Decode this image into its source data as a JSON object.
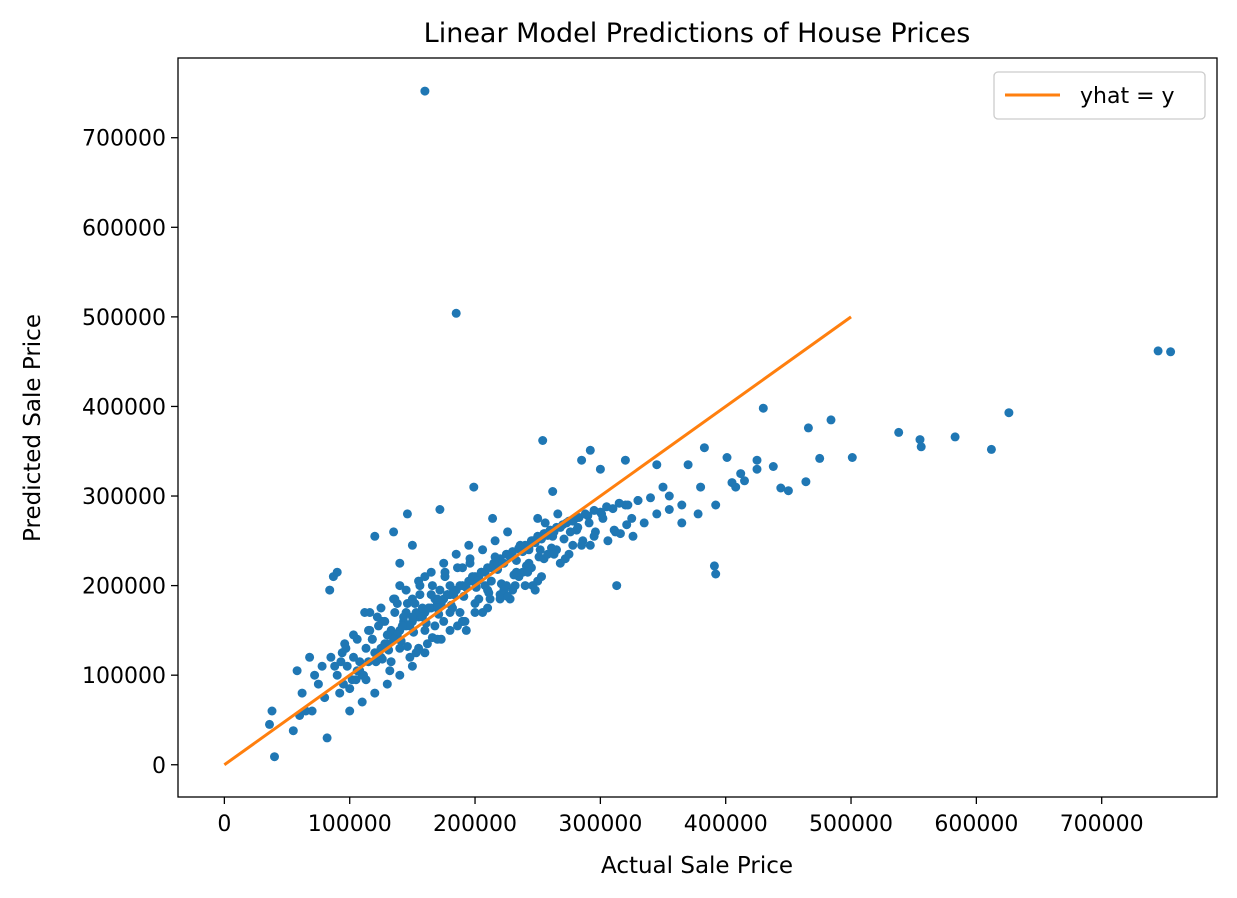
{
  "chart_data": {
    "type": "scatter",
    "title": "Linear Model Predictions of House Prices",
    "xlabel": "Actual Sale Price",
    "ylabel": "Predicted Sale Price",
    "xlim": [
      -37000,
      792000
    ],
    "ylim": [
      -36000,
      789000
    ],
    "xticks": [
      0,
      100000,
      200000,
      300000,
      400000,
      500000,
      600000,
      700000
    ],
    "yticks": [
      0,
      100000,
      200000,
      300000,
      400000,
      500000,
      600000,
      700000
    ],
    "grid": false,
    "legend": {
      "position": "top-right",
      "entries": [
        "yhat = y"
      ]
    },
    "colors": {
      "points": "#1f77b4",
      "line": "#ff7f0e"
    },
    "series": [
      {
        "type": "scatter",
        "x": [
          160000,
          185000,
          745000,
          755000,
          430000,
          626000,
          484000,
          466000,
          538000,
          555000,
          556000,
          583000,
          612000,
          475000,
          501000,
          254000,
          292000,
          383000,
          401000,
          415000,
          425000,
          438000,
          444000,
          464000,
          450000,
          391000,
          392000,
          313000,
          38000,
          40000,
          36000,
          55000,
          60000,
          70000,
          82000,
          87000,
          90000,
          120000,
          135000,
          146000,
          150000,
          108000,
          112000,
          84000,
          140000,
          172000,
          199000,
          214000,
          243000,
          262000,
          285000,
          300000,
          320000,
          345000,
          370000,
          250000,
          262000,
          330000,
          350000,
          355000,
          380000,
          405000,
          412000,
          378000,
          365000,
          392000,
          408000,
          425000,
          110000,
          115000,
          120000,
          125000,
          130000,
          135000,
          140000,
          145000,
          150000,
          155000,
          160000,
          165000,
          170000,
          175000,
          180000,
          185000,
          190000,
          195000,
          200000,
          205000,
          210000,
          215000,
          220000,
          225000,
          230000,
          235000,
          240000,
          245000,
          250000,
          255000,
          260000,
          265000,
          270000,
          275000,
          280000,
          290000,
          300000,
          310000,
          320000,
          330000,
          340000,
          100000,
          105000,
          95000,
          90000,
          92000,
          98000,
          103000,
          108000,
          113000,
          118000,
          123000,
          128000,
          133000,
          138000,
          143000,
          148000,
          153000,
          158000,
          163000,
          168000,
          173000,
          178000,
          183000,
          188000,
          193000,
          198000,
          203000,
          208000,
          213000,
          218000,
          223000,
          228000,
          233000,
          238000,
          243000,
          248000,
          253000,
          258000,
          263000,
          268000,
          273000,
          278000,
          283000,
          288000,
          295000,
          305000,
          315000,
          325000,
          335000,
          345000,
          355000,
          365000,
          85000,
          88000,
          94000,
          97000,
          102000,
          106000,
          111000,
          116000,
          121000,
          126000,
          131000,
          136000,
          141000,
          146000,
          151000,
          156000,
          161000,
          166000,
          171000,
          176000,
          181000,
          186000,
          191000,
          196000,
          201000,
          206000,
          211000,
          216000,
          221000,
          226000,
          231000,
          236000,
          241000,
          246000,
          251000,
          256000,
          261000,
          266000,
          271000,
          276000,
          281000,
          286000,
          291000,
          296000,
          301000,
          306000,
          311000,
          316000,
          321000,
          326000,
          78000,
          80000,
          75000,
          72000,
          68000,
          65000,
          62000,
          58000,
          100000,
          110000,
          120000,
          130000,
          140000,
          150000,
          160000,
          170000,
          180000,
          190000,
          200000,
          210000,
          220000,
          230000,
          240000,
          250000,
          125000,
          135000,
          145000,
          155000,
          165000,
          175000,
          185000,
          195000,
          205000,
          215000,
          225000,
          235000,
          245000,
          255000,
          265000,
          275000,
          285000,
          295000,
          130000,
          140000,
          150000,
          160000,
          170000,
          180000,
          190000,
          200000,
          210000,
          220000,
          140000,
          150000,
          160000,
          170000,
          180000,
          190000,
          115000,
          125000,
          135000,
          145000,
          155000,
          165000,
          175000,
          118000,
          128000,
          138000,
          148000,
          158000,
          168000,
          178000,
          188000,
          198000,
          208000,
          218000,
          228000,
          238000,
          248000,
          258000,
          268000,
          278000,
          122000,
          132000,
          142000,
          152000,
          162000,
          172000,
          182000,
          192000,
          202000,
          212000,
          222000,
          232000,
          242000,
          252000,
          262000,
          272000,
          282000,
          292000,
          302000,
          312000,
          322000,
          93000,
          103000,
          113000,
          123000,
          133000,
          143000,
          153000,
          163000,
          173000,
          183000,
          193000,
          203000,
          213000,
          223000,
          233000,
          243000,
          253000,
          263000,
          96000,
          106000,
          116000,
          126000,
          136000,
          146000,
          156000,
          166000,
          176000,
          186000,
          196000,
          206000,
          216000,
          226000,
          236000,
          246000,
          256000
        ],
        "y": [
          752000,
          504000,
          462000,
          461000,
          398000,
          393000,
          385000,
          376000,
          371000,
          363000,
          355000,
          366000,
          352000,
          342000,
          343000,
          362000,
          351000,
          354000,
          343000,
          317000,
          340000,
          333000,
          309000,
          316000,
          306000,
          222000,
          213000,
          200000,
          60000,
          9000,
          45000,
          38000,
          55000,
          60000,
          30000,
          210000,
          215000,
          255000,
          260000,
          280000,
          245000,
          115000,
          170000,
          195000,
          225000,
          285000,
          310000,
          275000,
          240000,
          305000,
          340000,
          330000,
          340000,
          335000,
          335000,
          275000,
          240000,
          295000,
          310000,
          300000,
          310000,
          315000,
          325000,
          280000,
          270000,
          290000,
          310000,
          330000,
          100000,
          115000,
          125000,
          130000,
          135000,
          145000,
          150000,
          155000,
          160000,
          165000,
          170000,
          175000,
          180000,
          185000,
          190000,
          195000,
          200000,
          205000,
          210000,
          215000,
          220000,
          225000,
          230000,
          235000,
          238000,
          242000,
          245000,
          250000,
          255000,
          258000,
          262000,
          265000,
          268000,
          272000,
          275000,
          278000,
          282000,
          286000,
          290000,
          295000,
          298000,
          85000,
          95000,
          90000,
          100000,
          80000,
          110000,
          120000,
          105000,
          130000,
          140000,
          125000,
          135000,
          150000,
          145000,
          160000,
          155000,
          170000,
          165000,
          175000,
          185000,
          180000,
          190000,
          195000,
          200000,
          198000,
          205000,
          210000,
          215000,
          220000,
          218000,
          225000,
          232000,
          228000,
          238000,
          242000,
          248000,
          252000,
          256000,
          260000,
          265000,
          270000,
          272000,
          276000,
          280000,
          284000,
          288000,
          292000,
          275000,
          270000,
          280000,
          285000,
          290000,
          120000,
          110000,
          125000,
          130000,
          95000,
          140000,
          100000,
          150000,
          115000,
          160000,
          128000,
          170000,
          138000,
          180000,
          148000,
          190000,
          158000,
          200000,
          168000,
          210000,
          178000,
          220000,
          188000,
          230000,
          198000,
          240000,
          192000,
          250000,
          202000,
          260000,
          212000,
          240000,
          222000,
          250000,
          232000,
          270000,
          242000,
          280000,
          252000,
          260000,
          262000,
          250000,
          270000,
          260000,
          280000,
          250000,
          262000,
          258000,
          268000,
          255000,
          110000,
          75000,
          90000,
          100000,
          120000,
          60000,
          80000,
          105000,
          60000,
          70000,
          80000,
          90000,
          100000,
          110000,
          125000,
          140000,
          150000,
          160000,
          170000,
          175000,
          185000,
          195000,
          200000,
          205000,
          175000,
          185000,
          195000,
          205000,
          215000,
          225000,
          235000,
          245000,
          215000,
          222000,
          200000,
          210000,
          220000,
          230000,
          240000,
          235000,
          245000,
          255000,
          145000,
          130000,
          165000,
          150000,
          185000,
          170000,
          160000,
          180000,
          195000,
          190000,
          200000,
          185000,
          210000,
          175000,
          200000,
          220000,
          150000,
          120000,
          140000,
          170000,
          130000,
          190000,
          160000,
          140000,
          160000,
          180000,
          120000,
          175000,
          155000,
          190000,
          170000,
          210000,
          200000,
          225000,
          185000,
          215000,
          195000,
          235000,
          225000,
          245000,
          165000,
          105000,
          155000,
          180000,
          135000,
          195000,
          175000,
          160000,
          205000,
          185000,
          225000,
          200000,
          215000,
          240000,
          255000,
          230000,
          265000,
          245000,
          275000,
          260000,
          290000,
          115000,
          145000,
          95000,
          155000,
          115000,
          165000,
          125000,
          175000,
          140000,
          190000,
          150000,
          185000,
          205000,
          195000,
          215000,
          225000,
          210000,
          235000,
          135000,
          105000,
          170000,
          118000,
          185000,
          132000,
          200000,
          142000,
          215000,
          155000,
          225000,
          170000,
          232000,
          188000,
          245000,
          200000,
          258000
        ]
      },
      {
        "name": "yhat = y",
        "type": "line",
        "x": [
          0,
          500000
        ],
        "y": [
          0,
          500000
        ]
      }
    ]
  }
}
